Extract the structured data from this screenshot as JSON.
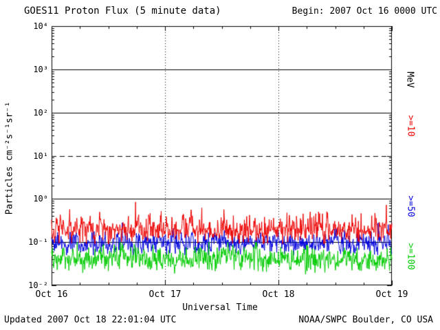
{
  "header": {
    "begin": "Begin: 2007 Oct 16 0000 UTC"
  },
  "footer": {
    "updated": "Updated 2007 Oct 18 22:01:04 UTC",
    "source": "NOAA/SWPC Boulder, CO USA"
  },
  "chart_data": {
    "type": "line",
    "title": "GOES11 Proton Flux (5 minute data)",
    "xlabel": "Universal Time",
    "ylabel": "Particles cm⁻²s⁻¹sr⁻¹",
    "right_axis_unit": "MeV",
    "x_ticks": [
      "Oct 16",
      "Oct 17",
      "Oct 18",
      "Oct 19"
    ],
    "y_tick_labels": [
      "10⁴",
      "10³",
      "10²",
      "10¹",
      "10⁰",
      "10⁻¹",
      "10⁻²"
    ],
    "ylim_log10": [
      -2,
      4
    ],
    "grid_on": true,
    "legend_position": "right-rotated",
    "points_per_series": 864,
    "noise_seed": 20071016,
    "gridlines": {
      "solid_log10": [
        3,
        2,
        0,
        -1
      ],
      "dashed_log10": [
        1
      ],
      "dotted_day_boundaries": [
        1,
        2
      ]
    },
    "series": [
      {
        "name": "proton-flux-ge-10-MeV",
        "label": ">=10",
        "color": "#ee0000",
        "approx_baseline": 0.2,
        "approx_range": [
          0.09,
          0.85
        ],
        "noise_sigma_decades": 0.15
      },
      {
        "name": "proton-flux-ge-50-MeV",
        "label": ">=50",
        "color": "#0000dd",
        "approx_baseline": 0.095,
        "approx_range": [
          0.05,
          0.28
        ],
        "noise_sigma_decades": 0.12
      },
      {
        "name": "proton-flux-ge-100-MeV",
        "label": ">=100",
        "color": "#00cc00",
        "approx_baseline": 0.042,
        "approx_range": [
          0.018,
          0.1
        ],
        "noise_sigma_decades": 0.13
      }
    ]
  }
}
